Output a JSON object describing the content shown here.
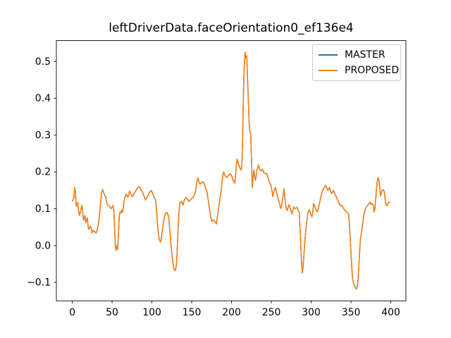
{
  "chart_data": {
    "type": "line",
    "title": "leftDriverData.faceOrientation0_ef136e4",
    "xlabel": "",
    "ylabel": "",
    "grid": false,
    "xlim": [
      -19.95,
      418.95
    ],
    "ylim": [
      -0.15,
      0.557
    ],
    "x_ticks": {
      "values": [
        0,
        50,
        100,
        150,
        200,
        250,
        300,
        350,
        400
      ],
      "labels": [
        "0",
        "50",
        "100",
        "150",
        "200",
        "250",
        "300",
        "350",
        "400"
      ]
    },
    "y_ticks": {
      "values": [
        -0.1,
        0.0,
        0.1,
        0.2,
        0.3,
        0.4,
        0.5
      ],
      "labels": [
        "−0.1",
        "0.0",
        "0.1",
        "0.2",
        "0.3",
        "0.4",
        "0.5"
      ]
    },
    "legend": {
      "position": "upper right",
      "entries": [
        {
          "label": "MASTER",
          "color": "#1f77b4"
        },
        {
          "label": "PROPOSED",
          "color": "#ff7f0e"
        }
      ]
    },
    "series": [
      {
        "name": "MASTER",
        "color": "#1f77b4"
      },
      {
        "name": "PROPOSED",
        "color": "#ff7f0e"
      }
    ],
    "series_note": "MASTER and PROPOSED are identical; PROPOSED is drawn on top and fully covers MASTER",
    "x_start": 0,
    "x_step": 1,
    "values": [
      0.12,
      0.125,
      0.13,
      0.158,
      0.145,
      0.107,
      0.112,
      0.117,
      0.09,
      0.082,
      0.09,
      0.1,
      0.11,
      0.095,
      0.069,
      0.075,
      0.082,
      0.062,
      0.07,
      0.075,
      0.05,
      0.044,
      0.05,
      0.053,
      0.045,
      0.034,
      0.04,
      0.041,
      0.038,
      0.036,
      0.034,
      0.04,
      0.05,
      0.06,
      0.08,
      0.1,
      0.125,
      0.145,
      0.152,
      0.148,
      0.14,
      0.135,
      0.133,
      0.12,
      0.112,
      0.11,
      0.107,
      0.105,
      0.103,
      0.1,
      0.105,
      0.109,
      0.1,
      0.06,
      0.0,
      -0.013,
      0.0,
      -0.01,
      0.03,
      0.083,
      0.091,
      0.088,
      0.097,
      0.09,
      0.1,
      0.12,
      0.13,
      0.135,
      0.14,
      0.135,
      0.132,
      0.14,
      0.148,
      0.143,
      0.138,
      0.134,
      0.134,
      0.138,
      0.142,
      0.146,
      0.15,
      0.153,
      0.157,
      0.158,
      0.16,
      0.158,
      0.152,
      0.15,
      0.146,
      0.141,
      0.136,
      0.13,
      0.124,
      0.128,
      0.132,
      0.136,
      0.14,
      0.144,
      0.148,
      0.15,
      0.146,
      0.141,
      0.136,
      0.131,
      0.127,
      0.12,
      0.09,
      0.06,
      0.035,
      0.02,
      0.012,
      0.01,
      0.025,
      0.04,
      0.055,
      0.07,
      0.08,
      0.086,
      0.09,
      0.09,
      0.085,
      0.08,
      0.055,
      0.03,
      0.0,
      -0.02,
      -0.04,
      -0.055,
      -0.065,
      -0.068,
      -0.062,
      -0.05,
      0.0,
      0.05,
      0.09,
      0.114,
      0.118,
      0.12,
      0.115,
      0.11,
      0.118,
      0.125,
      0.128,
      0.13,
      0.128,
      0.125,
      0.122,
      0.12,
      0.123,
      0.126,
      0.128,
      0.13,
      0.133,
      0.136,
      0.142,
      0.15,
      0.165,
      0.18,
      0.183,
      0.175,
      0.167,
      0.168,
      0.17,
      0.172,
      0.173,
      0.17,
      0.166,
      0.158,
      0.152,
      0.148,
      0.135,
      0.12,
      0.105,
      0.09,
      0.078,
      0.066,
      0.068,
      0.07,
      0.068,
      0.065,
      0.062,
      0.059,
      0.075,
      0.09,
      0.105,
      0.12,
      0.135,
      0.15,
      0.17,
      0.19,
      0.2,
      0.195,
      0.19,
      0.187,
      0.185,
      0.187,
      0.19,
      0.192,
      0.195,
      0.193,
      0.19,
      0.185,
      0.177,
      0.172,
      0.17,
      0.19,
      0.215,
      0.235,
      0.228,
      0.22,
      0.214,
      0.208,
      0.205,
      0.22,
      0.3,
      0.42,
      0.49,
      0.525,
      0.51,
      0.515,
      0.46,
      0.4,
      0.34,
      0.31,
      0.305,
      0.24,
      0.158,
      0.18,
      0.205,
      0.19,
      0.177,
      0.19,
      0.205,
      0.213,
      0.219,
      0.21,
      0.205,
      0.203,
      0.205,
      0.207,
      0.2,
      0.197,
      0.196,
      0.195,
      0.196,
      0.19,
      0.183,
      0.175,
      0.17,
      0.167,
      0.16,
      0.145,
      0.133,
      0.145,
      0.152,
      0.158,
      0.15,
      0.14,
      0.132,
      0.124,
      0.115,
      0.107,
      0.101,
      0.11,
      0.125,
      0.14,
      0.154,
      0.13,
      0.11,
      0.1,
      0.095,
      0.103,
      0.111,
      0.108,
      0.1,
      0.092,
      0.086,
      0.095,
      0.105,
      0.102,
      0.1,
      0.102,
      0.104,
      0.1,
      0.095,
      0.09,
      0.05,
      0.0,
      -0.05,
      -0.074,
      -0.055,
      -0.02,
      0.01,
      0.035,
      0.057,
      0.075,
      0.09,
      0.095,
      0.097,
      0.09,
      0.082,
      0.078,
      0.09,
      0.114,
      0.11,
      0.104,
      0.098,
      0.094,
      0.092,
      0.1,
      0.11,
      0.12,
      0.13,
      0.14,
      0.147,
      0.152,
      0.157,
      0.16,
      0.164,
      0.16,
      0.155,
      0.15,
      0.155,
      0.158,
      0.15,
      0.143,
      0.142,
      0.146,
      0.15,
      0.145,
      0.14,
      0.135,
      0.13,
      0.125,
      0.12,
      0.115,
      0.11,
      0.108,
      0.11,
      0.107,
      0.103,
      0.1,
      0.097,
      0.095,
      0.092,
      0.09,
      0.088,
      0.085,
      0.06,
      0.02,
      -0.02,
      -0.06,
      -0.09,
      -0.1,
      -0.106,
      -0.112,
      -0.116,
      -0.118,
      -0.11,
      -0.09,
      -0.05,
      -0.01,
      0.02,
      0.034,
      0.05,
      0.065,
      0.08,
      0.09,
      0.1,
      0.105,
      0.107,
      0.11,
      0.112,
      0.115,
      0.118,
      0.112,
      0.115,
      0.113,
      0.108,
      0.091,
      0.1,
      0.125,
      0.155,
      0.175,
      0.185,
      0.178,
      0.16,
      0.135,
      0.142,
      0.15,
      0.152,
      0.15,
      0.145,
      0.125,
      0.112,
      0.108,
      0.112,
      0.118,
      0.117,
      0.118
    ]
  }
}
